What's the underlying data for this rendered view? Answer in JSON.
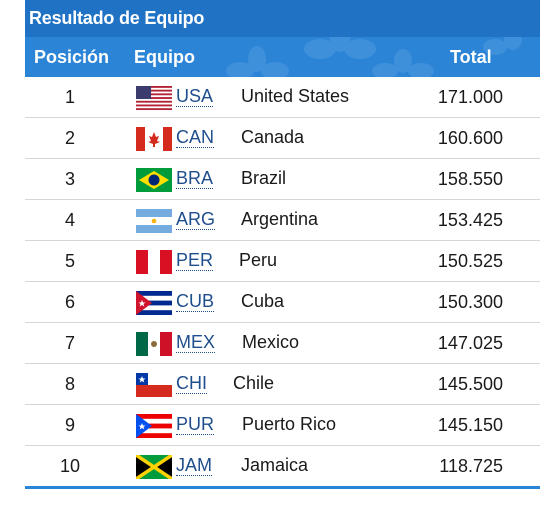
{
  "title": "Resultado de Equipo",
  "columns": {
    "position": "Posición",
    "team": "Equipo",
    "total": "Total"
  },
  "rows": [
    {
      "position": "1",
      "code": "USA",
      "country": "United States",
      "total": "171.000",
      "flag": "usa-flag-icon"
    },
    {
      "position": "2",
      "code": "CAN",
      "country": "Canada",
      "total": "160.600",
      "flag": "canada-flag-icon"
    },
    {
      "position": "3",
      "code": "BRA",
      "country": "Brazil",
      "total": "158.550",
      "flag": "brazil-flag-icon"
    },
    {
      "position": "4",
      "code": "ARG",
      "country": "Argentina",
      "total": "153.425",
      "flag": "argentina-flag-icon"
    },
    {
      "position": "5",
      "code": "PER",
      "country": "Peru",
      "total": "150.525",
      "flag": "peru-flag-icon"
    },
    {
      "position": "6",
      "code": "CUB",
      "country": "Cuba",
      "total": "150.300",
      "flag": "cuba-flag-icon"
    },
    {
      "position": "7",
      "code": "MEX",
      "country": "Mexico",
      "total": "147.025",
      "flag": "mexico-flag-icon"
    },
    {
      "position": "8",
      "code": "CHI",
      "country": "Chile",
      "total": "145.500",
      "flag": "chile-flag-icon"
    },
    {
      "position": "9",
      "code": "PUR",
      "country": "Puerto Rico",
      "total": "145.150",
      "flag": "puerto-rico-flag-icon"
    },
    {
      "position": "10",
      "code": "JAM",
      "country": "Jamaica",
      "total": "118.725",
      "flag": "jamaica-flag-icon"
    }
  ],
  "colors": {
    "title_bar": "#1f72c4",
    "header_row": "#2c84d6",
    "code_link": "#1f4e8c"
  }
}
